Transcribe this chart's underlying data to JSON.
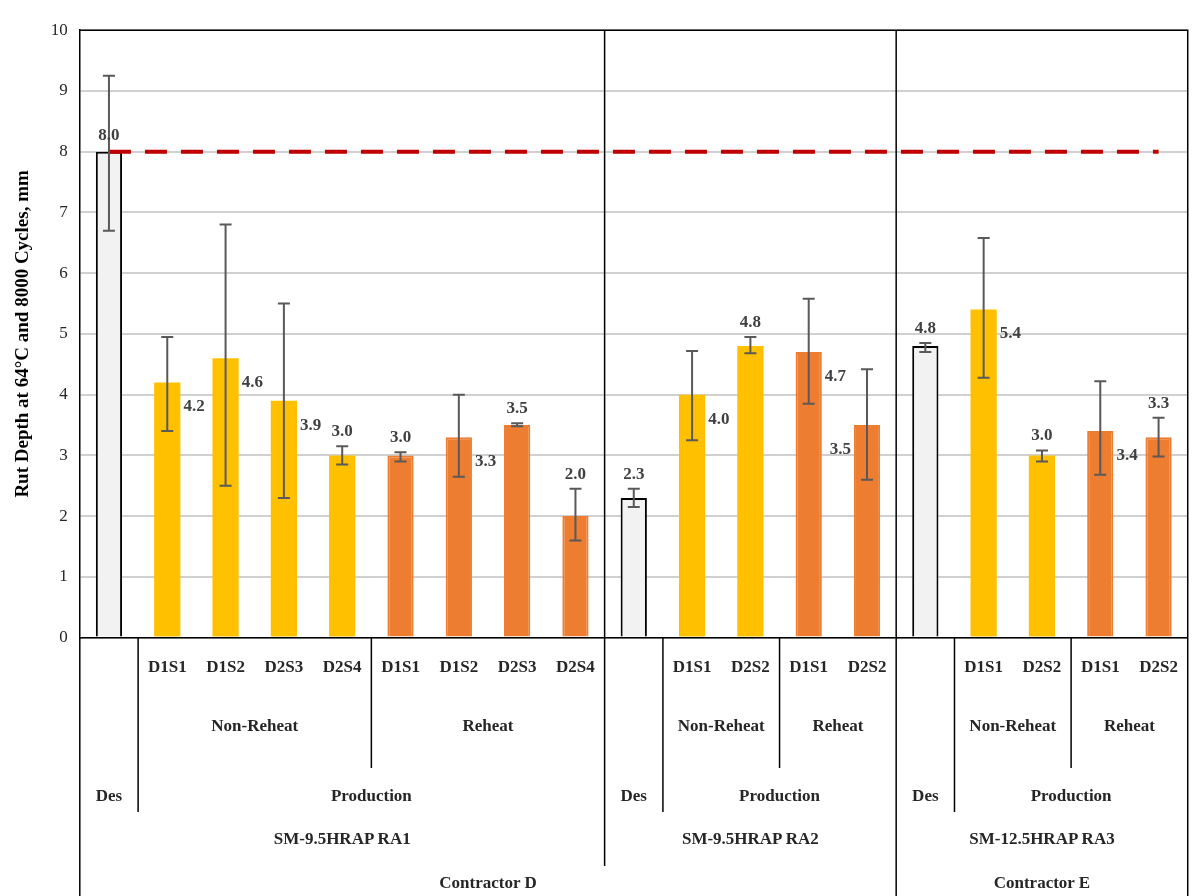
{
  "chart_data": {
    "type": "bar",
    "ylabel": "Rut Depth at 64°C and 8000 Cycles, mm",
    "categories": [
      null,
      "D1S1",
      "D1S2",
      "D2S3",
      "D2S4",
      "D1S1",
      "D1S2",
      "D2S3",
      "D2S4",
      null,
      "D1S1",
      "D2S2",
      "D1S1",
      "D2S2",
      null,
      "D1S1",
      "D2S2",
      "D1S1",
      "D2S2"
    ],
    "series": [
      {
        "color": "#f2f2f2",
        "values": [
          8.0,
          null,
          null,
          null,
          null,
          null,
          null,
          null,
          null,
          2.3,
          null,
          null,
          null,
          null,
          4.8,
          null,
          null,
          null,
          null
        ],
        "value_labels": [
          "8.0",
          null,
          null,
          null,
          null,
          null,
          null,
          null,
          null,
          "2.3",
          null,
          null,
          null,
          null,
          "4.8",
          null,
          null,
          null,
          null
        ],
        "errors": [
          [
            6.7,
            9.25
          ],
          null,
          null,
          null,
          null,
          null,
          null,
          null,
          null,
          [
            2.15,
            2.45
          ],
          null,
          null,
          null,
          null,
          [
            4.7,
            4.85
          ],
          null,
          null,
          null,
          null
        ]
      },
      {
        "color": "#ffc000",
        "values": [
          null,
          4.2,
          4.6,
          3.9,
          3.0,
          null,
          null,
          null,
          null,
          null,
          4.0,
          4.8,
          null,
          null,
          null,
          5.4,
          3.0,
          null,
          null
        ],
        "value_labels": [
          null,
          "4.2",
          "4.6",
          "3.9",
          "3.0",
          null,
          null,
          null,
          null,
          null,
          "4.0",
          "4.8",
          null,
          null,
          null,
          "5.4",
          "3.0",
          null,
          null
        ],
        "errors": [
          null,
          [
            3.4,
            4.95
          ],
          [
            2.5,
            6.8
          ],
          [
            2.3,
            5.5
          ],
          [
            2.85,
            3.15
          ],
          null,
          null,
          null,
          null,
          null,
          [
            3.25,
            4.72
          ],
          [
            4.68,
            4.95
          ],
          null,
          null,
          null,
          [
            4.28,
            6.58
          ],
          [
            2.9,
            3.08
          ],
          null,
          null
        ]
      },
      {
        "color": "#ed7d31",
        "values": [
          null,
          null,
          null,
          null,
          null,
          3.0,
          3.3,
          3.5,
          2.0,
          null,
          null,
          null,
          4.7,
          3.5,
          null,
          null,
          null,
          3.4,
          3.3
        ],
        "value_labels": [
          null,
          null,
          null,
          null,
          null,
          "3.0",
          "3.3",
          "3.5",
          "2.0",
          null,
          null,
          null,
          "4.7",
          "3.5",
          null,
          null,
          null,
          "3.4",
          "3.3"
        ],
        "errors": [
          null,
          null,
          null,
          null,
          null,
          [
            2.9,
            3.05
          ],
          [
            2.65,
            4.0
          ],
          [
            3.48,
            3.53
          ],
          [
            1.6,
            2.45
          ],
          null,
          null,
          null,
          [
            3.85,
            5.58
          ],
          [
            2.6,
            4.42
          ],
          null,
          null,
          null,
          [
            2.68,
            4.22
          ],
          [
            2.98,
            3.62
          ]
        ]
      }
    ],
    "ylim": [
      0,
      10
    ],
    "yticks": [
      0,
      1,
      2,
      3,
      4,
      5,
      6,
      7,
      8,
      9,
      10
    ],
    "grid": "y",
    "legend": false,
    "ref_lines": [
      {
        "axis": "y",
        "value": 8,
        "color": "#c00000",
        "line_style": "dashed"
      }
    ],
    "annotations": [
      "Non-Reheat",
      "Reheat",
      "Non-Reheat",
      "Reheat",
      "Non-Reheat",
      "Reheat",
      "Des",
      "Production",
      "Des",
      "Production",
      "Des",
      "Production",
      "SM-9.5HRAP RA1",
      "SM-9.5HRAP RA2",
      "SM-12.5HRAP RA3",
      "Contractor D",
      "Contractor E"
    ]
  }
}
